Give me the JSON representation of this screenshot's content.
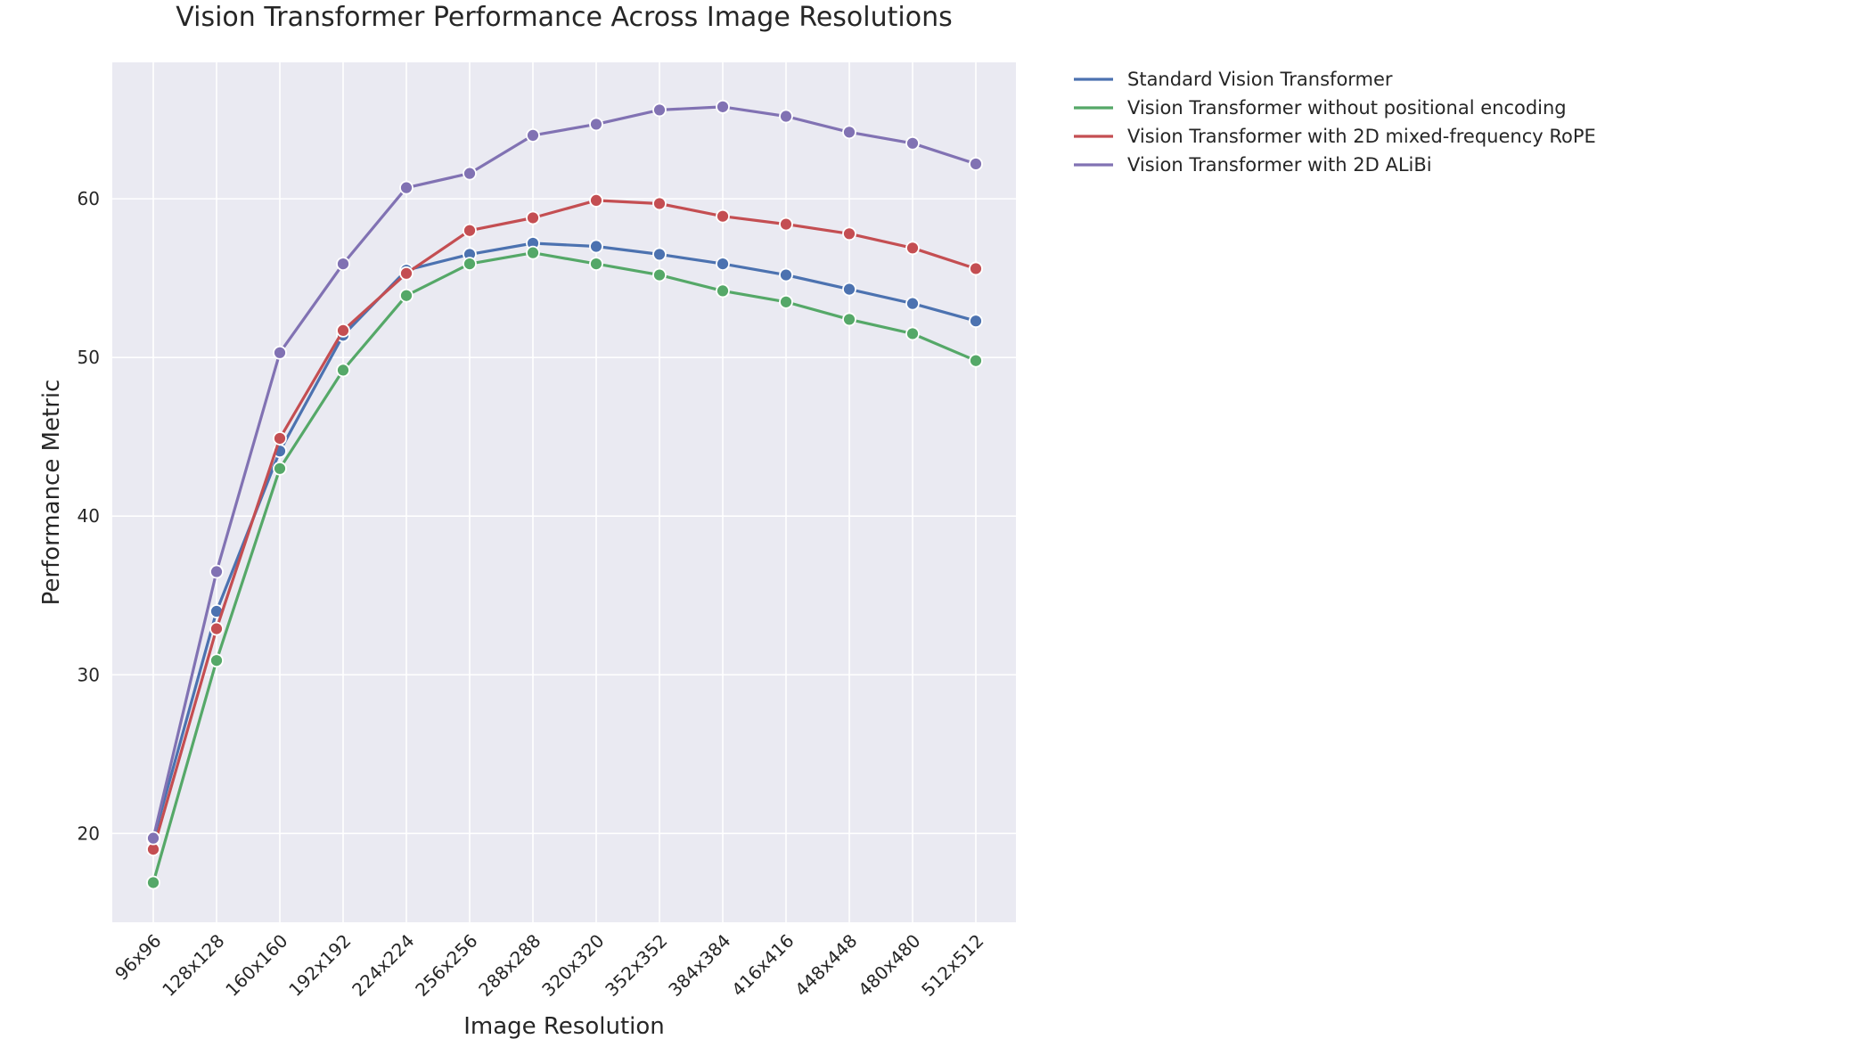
{
  "chart_data": {
    "type": "line",
    "title": "Vision Transformer Performance Across Image Resolutions",
    "xlabel": "Image Resolution",
    "ylabel": "Performance Metric",
    "categories": [
      "96x96",
      "128x128",
      "160x160",
      "192x192",
      "224x224",
      "256x256",
      "288x288",
      "320x320",
      "352x352",
      "384x384",
      "416x416",
      "448x448",
      "480x480",
      "512x512"
    ],
    "ylim": [
      14.4,
      68.6
    ],
    "yticks": [
      20,
      30,
      40,
      50,
      60
    ],
    "grid": true,
    "legend_position": "outside-top-right",
    "series": [
      {
        "name": "Standard Vision Transformer",
        "color": "#4c72b0",
        "values": [
          19.6,
          34.0,
          44.1,
          51.4,
          55.5,
          56.5,
          57.2,
          57.0,
          56.5,
          55.9,
          55.2,
          54.3,
          53.4,
          52.3
        ]
      },
      {
        "name": "Vision Transformer without positional encoding",
        "color": "#55a868",
        "values": [
          16.9,
          30.9,
          43.0,
          49.2,
          53.9,
          55.9,
          56.6,
          55.9,
          55.2,
          54.2,
          53.5,
          52.4,
          51.5,
          49.8
        ]
      },
      {
        "name": "Vision Transformer with 2D mixed-frequency RoPE",
        "color": "#c44e52",
        "values": [
          19.0,
          32.9,
          44.9,
          51.7,
          55.3,
          58.0,
          58.8,
          59.9,
          59.7,
          58.9,
          58.4,
          57.8,
          56.9,
          55.6
        ]
      },
      {
        "name": "Vision Transformer with 2D ALiBi",
        "color": "#8172b3",
        "values": [
          19.7,
          36.5,
          50.3,
          55.9,
          60.7,
          61.6,
          64.0,
          64.7,
          65.6,
          65.8,
          65.2,
          64.2,
          63.5,
          62.2
        ]
      }
    ]
  }
}
